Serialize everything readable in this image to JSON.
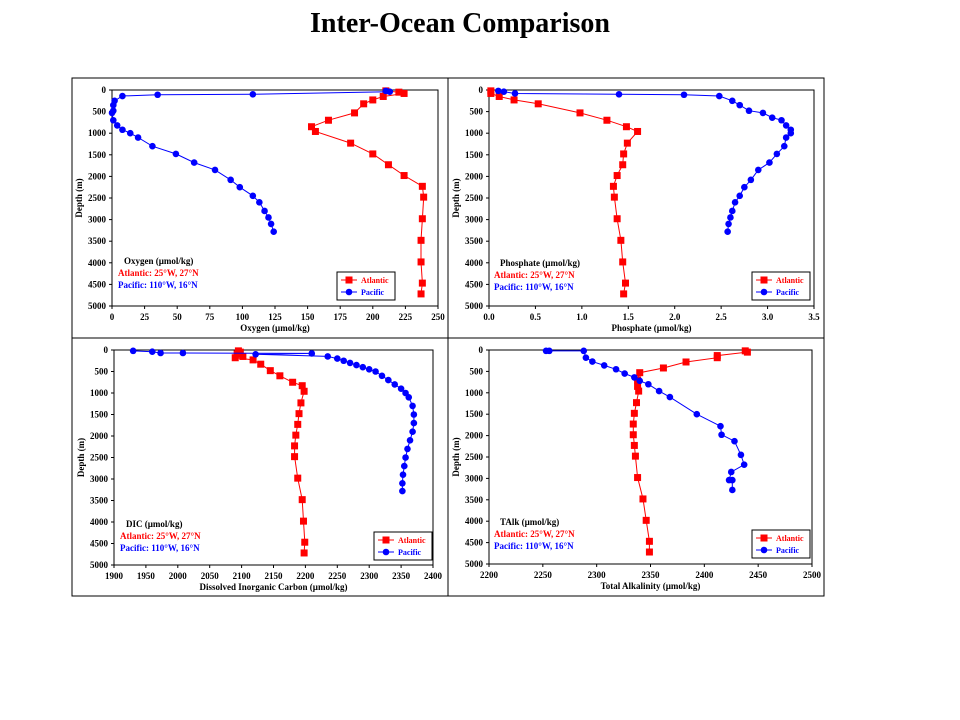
{
  "slide": {
    "title": "Inter-Ocean Comparison"
  },
  "colors": {
    "atlantic": "#ff0000",
    "pacific": "#0000ff",
    "frame": "#000000"
  },
  "chart_data": [
    {
      "type": "line",
      "xlabel": "Oxygen (µmol/kg)",
      "ylabel": "Depth (m)",
      "xlim": [
        0,
        250
      ],
      "ylim": [
        0,
        5000
      ],
      "y_inverted": true,
      "xticks": [
        0,
        25,
        50,
        75,
        100,
        125,
        150,
        175,
        200,
        225,
        250
      ],
      "yticks": [
        0,
        500,
        1000,
        1500,
        2000,
        2500,
        3000,
        3500,
        4000,
        4500,
        5000
      ],
      "annotation": [
        "Oxygen (µmol/kg)",
        "Atlantic: 25°W, 27°N",
        "Pacific: 110°W, 16°N"
      ],
      "legend": [
        "Atlantic",
        "Pacific"
      ],
      "series": [
        {
          "name": "Atlantic",
          "color": "#ff0000",
          "marker": "square",
          "points": [
            [
              210,
              20
            ],
            [
              220,
              50
            ],
            [
              224,
              80
            ],
            [
              208,
              150
            ],
            [
              200,
              230
            ],
            [
              193,
              320
            ],
            [
              186,
              530
            ],
            [
              166,
              700
            ],
            [
              153,
              850
            ],
            [
              156,
              960
            ],
            [
              183,
              1230
            ],
            [
              200,
              1480
            ],
            [
              212,
              1730
            ],
            [
              224,
              1980
            ],
            [
              238,
              2230
            ],
            [
              239,
              2480
            ],
            [
              238,
              2980
            ],
            [
              237,
              3480
            ],
            [
              237,
              3980
            ],
            [
              238,
              4470
            ],
            [
              237,
              4720
            ]
          ]
        },
        {
          "name": "Pacific",
          "color": "#0000ff",
          "marker": "circle",
          "points": [
            [
              210,
              20
            ],
            [
              213,
              40
            ],
            [
              108,
              100
            ],
            [
              35,
              110
            ],
            [
              8,
              140
            ],
            [
              2,
              250
            ],
            [
              1,
              350
            ],
            [
              1,
              480
            ],
            [
              0,
              530
            ],
            [
              1,
              700
            ],
            [
              4,
              820
            ],
            [
              8,
              920
            ],
            [
              14,
              1000
            ],
            [
              20,
              1100
            ],
            [
              31,
              1300
            ],
            [
              49,
              1480
            ],
            [
              63,
              1680
            ],
            [
              79,
              1850
            ],
            [
              91,
              2080
            ],
            [
              98,
              2250
            ],
            [
              108,
              2450
            ],
            [
              113,
              2600
            ],
            [
              117,
              2800
            ],
            [
              120,
              2950
            ],
            [
              122,
              3100
            ],
            [
              124,
              3280
            ]
          ]
        }
      ]
    },
    {
      "type": "line",
      "xlabel": "Phosphate (µmol/kg)",
      "ylabel": "Depth (m)",
      "xlim": [
        0,
        3.5
      ],
      "ylim": [
        0,
        5000
      ],
      "y_inverted": true,
      "xticks": [
        "0.0",
        "0.5",
        "1.0",
        "1.5",
        "2.0",
        "2.5",
        "3.0",
        "3.5"
      ],
      "yticks": [
        0,
        500,
        1000,
        1500,
        2000,
        2500,
        3000,
        3500,
        4000,
        4500,
        5000
      ],
      "annotation": [
        "Phosphate (µmol/kg)",
        "Atlantic: 25°W, 27°N",
        "Pacific: 110°W, 16°N"
      ],
      "legend": [
        "Atlantic",
        "Pacific"
      ],
      "series": [
        {
          "name": "Atlantic",
          "color": "#ff0000",
          "marker": "square",
          "points": [
            [
              0.02,
              20
            ],
            [
              0.02,
              80
            ],
            [
              0.11,
              150
            ],
            [
              0.27,
              230
            ],
            [
              0.53,
              320
            ],
            [
              0.98,
              530
            ],
            [
              1.27,
              700
            ],
            [
              1.48,
              850
            ],
            [
              1.6,
              960
            ],
            [
              1.49,
              1230
            ],
            [
              1.45,
              1480
            ],
            [
              1.44,
              1730
            ],
            [
              1.38,
              1980
            ],
            [
              1.34,
              2230
            ],
            [
              1.35,
              2480
            ],
            [
              1.38,
              2980
            ],
            [
              1.42,
              3480
            ],
            [
              1.44,
              3980
            ],
            [
              1.47,
              4470
            ],
            [
              1.45,
              4720
            ]
          ]
        },
        {
          "name": "Pacific",
          "color": "#0000ff",
          "marker": "circle",
          "points": [
            [
              0.1,
              20
            ],
            [
              0.16,
              40
            ],
            [
              0.28,
              80
            ],
            [
              1.4,
              100
            ],
            [
              2.1,
              110
            ],
            [
              2.48,
              140
            ],
            [
              2.62,
              250
            ],
            [
              2.7,
              350
            ],
            [
              2.8,
              480
            ],
            [
              2.95,
              530
            ],
            [
              3.05,
              640
            ],
            [
              3.15,
              700
            ],
            [
              3.2,
              820
            ],
            [
              3.25,
              920
            ],
            [
              3.25,
              1000
            ],
            [
              3.2,
              1100
            ],
            [
              3.18,
              1300
            ],
            [
              3.1,
              1480
            ],
            [
              3.02,
              1680
            ],
            [
              2.9,
              1850
            ],
            [
              2.82,
              2080
            ],
            [
              2.75,
              2250
            ],
            [
              2.7,
              2450
            ],
            [
              2.65,
              2600
            ],
            [
              2.62,
              2800
            ],
            [
              2.6,
              2950
            ],
            [
              2.58,
              3100
            ],
            [
              2.57,
              3280
            ]
          ]
        }
      ]
    },
    {
      "type": "line",
      "xlabel": "Dissolved Inorganic Carbon (µmol/kg)",
      "ylabel": "Depth (m)",
      "xlim": [
        1900,
        2400
      ],
      "ylim": [
        0,
        5000
      ],
      "y_inverted": true,
      "xticks": [
        1900,
        1950,
        2000,
        2050,
        2100,
        2150,
        2200,
        2250,
        2300,
        2350,
        2400
      ],
      "yticks": [
        0,
        500,
        1000,
        1500,
        2000,
        2500,
        3000,
        3500,
        4000,
        4500,
        5000
      ],
      "annotation": [
        "DIC (µmol/kg)",
        "Atlantic: 25°W, 27°N",
        "Pacific: 110°W, 16°N"
      ],
      "legend": [
        "Atlantic",
        "Pacific"
      ],
      "series": [
        {
          "name": "Atlantic",
          "color": "#ff0000",
          "marker": "square",
          "points": [
            [
              2095,
              20
            ],
            [
              2098,
              50
            ],
            [
              2093,
              90
            ],
            [
              2102,
              150
            ],
            [
              2090,
              180
            ],
            [
              2118,
              230
            ],
            [
              2130,
              330
            ],
            [
              2145,
              480
            ],
            [
              2160,
              600
            ],
            [
              2180,
              750
            ],
            [
              2195,
              830
            ],
            [
              2198,
              960
            ],
            [
              2193,
              1230
            ],
            [
              2190,
              1480
            ],
            [
              2188,
              1730
            ],
            [
              2185,
              1980
            ],
            [
              2183,
              2230
            ],
            [
              2183,
              2480
            ],
            [
              2188,
              2980
            ],
            [
              2195,
              3480
            ],
            [
              2197,
              3980
            ],
            [
              2199,
              4470
            ],
            [
              2198,
              4720
            ]
          ]
        },
        {
          "name": "Pacific",
          "color": "#0000ff",
          "marker": "circle",
          "points": [
            [
              1930,
              20
            ],
            [
              1960,
              40
            ],
            [
              1973,
              70
            ],
            [
              2008,
              70
            ],
            [
              2210,
              80
            ],
            [
              2122,
              100
            ],
            [
              2235,
              150
            ],
            [
              2250,
              200
            ],
            [
              2260,
              250
            ],
            [
              2270,
              300
            ],
            [
              2280,
              350
            ],
            [
              2290,
              400
            ],
            [
              2300,
              450
            ],
            [
              2310,
              500
            ],
            [
              2320,
              600
            ],
            [
              2330,
              700
            ],
            [
              2340,
              800
            ],
            [
              2350,
              900
            ],
            [
              2357,
              1000
            ],
            [
              2362,
              1100
            ],
            [
              2368,
              1300
            ],
            [
              2370,
              1500
            ],
            [
              2370,
              1700
            ],
            [
              2368,
              1900
            ],
            [
              2364,
              2100
            ],
            [
              2360,
              2300
            ],
            [
              2357,
              2500
            ],
            [
              2355,
              2700
            ],
            [
              2353,
              2900
            ],
            [
              2352,
              3100
            ],
            [
              2352,
              3280
            ]
          ]
        }
      ]
    },
    {
      "type": "line",
      "xlabel": "Total Alkalinity (µmol/kg)",
      "ylabel": "Depth (m)",
      "xlim": [
        2200,
        2500
      ],
      "ylim": [
        0,
        5000
      ],
      "y_inverted": true,
      "xticks": [
        2200,
        2250,
        2300,
        2350,
        2400,
        2450,
        2500
      ],
      "yticks": [
        0,
        500,
        1000,
        1500,
        2000,
        2500,
        3000,
        3500,
        4000,
        4500,
        5000
      ],
      "annotation": [
        "TAlk (µmol/kg)",
        "Atlantic: 25°W, 27°N",
        "Pacific: 110°W, 16°N"
      ],
      "legend": [
        "Atlantic",
        "Pacific"
      ],
      "series": [
        {
          "name": "Atlantic",
          "color": "#ff0000",
          "marker": "square",
          "points": [
            [
              2438,
              20
            ],
            [
              2440,
              50
            ],
            [
              2412,
              130
            ],
            [
              2412,
              180
            ],
            [
              2383,
              280
            ],
            [
              2362,
              420
            ],
            [
              2340,
              530
            ],
            [
              2338,
              700
            ],
            [
              2338,
              850
            ],
            [
              2339,
              960
            ],
            [
              2337,
              1230
            ],
            [
              2335,
              1480
            ],
            [
              2334,
              1730
            ],
            [
              2334,
              1980
            ],
            [
              2335,
              2230
            ],
            [
              2336,
              2480
            ],
            [
              2338,
              2980
            ],
            [
              2343,
              3480
            ],
            [
              2346,
              3980
            ],
            [
              2349,
              4470
            ],
            [
              2349,
              4720
            ]
          ]
        },
        {
          "name": "Pacific",
          "color": "#0000ff",
          "marker": "circle",
          "points": [
            [
              2253,
              20
            ],
            [
              2256,
              20
            ],
            [
              2288,
              20
            ],
            [
              2290,
              180
            ],
            [
              2296,
              270
            ],
            [
              2307,
              360
            ],
            [
              2318,
              450
            ],
            [
              2326,
              550
            ],
            [
              2335,
              640
            ],
            [
              2340,
              720
            ],
            [
              2348,
              800
            ],
            [
              2358,
              960
            ],
            [
              2368,
              1100
            ],
            [
              2393,
              1500
            ],
            [
              2415,
              1780
            ],
            [
              2416,
              1980
            ],
            [
              2428,
              2130
            ],
            [
              2434,
              2450
            ],
            [
              2437,
              2680
            ],
            [
              2425,
              2850
            ],
            [
              2423,
              3040
            ],
            [
              2426,
              3040
            ],
            [
              2426,
              3270
            ]
          ]
        }
      ]
    }
  ]
}
